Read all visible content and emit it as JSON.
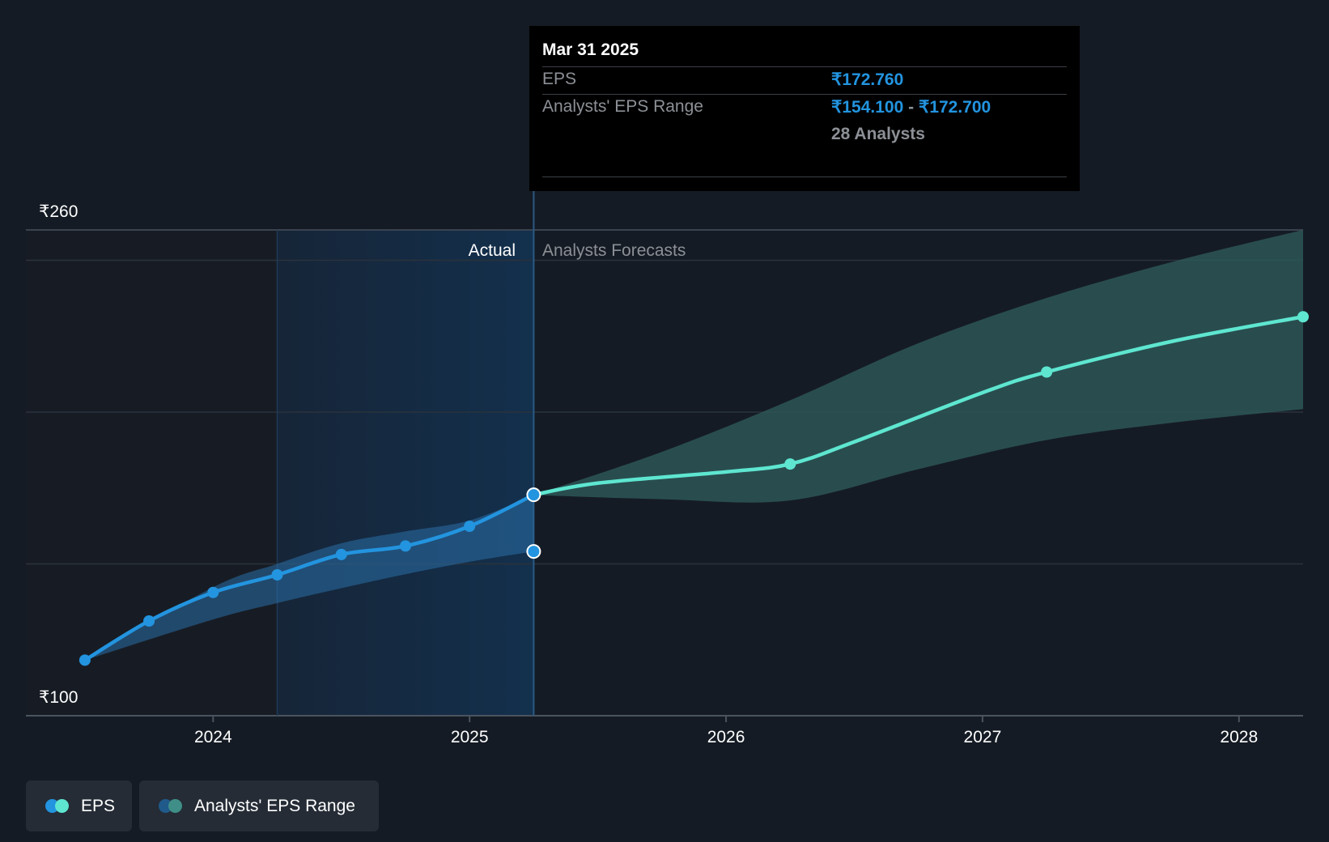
{
  "tooltip": {
    "date": "Mar 31 2025",
    "eps_label": "EPS",
    "eps_value": "₹172.760",
    "range_label": "Analysts' EPS Range",
    "range_low": "₹154.100",
    "range_sep": " - ",
    "range_high": "₹172.700",
    "analysts": "28 Analysts"
  },
  "sections": {
    "actual": "Actual",
    "forecast": "Analysts Forecasts"
  },
  "legend": {
    "eps": "EPS",
    "range": "Analysts' EPS Range"
  },
  "colors": {
    "eps_actual": "#2394df",
    "eps_forecast": "#5ee6d0",
    "range_actual": "#2a6fa8",
    "range_forecast": "#2e5a5a",
    "background": "#151b24"
  },
  "chart_data": {
    "type": "line",
    "y_tick_labels": [
      "₹260",
      "₹100"
    ],
    "ylim": [
      100,
      260
    ],
    "y_gridlines": [
      150,
      200,
      250
    ],
    "x_tick_labels": [
      "2024",
      "2025",
      "2026",
      "2027",
      "2028"
    ],
    "x_ticks": [
      2024.0,
      2025.0,
      2026.0,
      2027.0,
      2028.0
    ],
    "xlim": [
      2023.27,
      2028.25
    ],
    "actual_shaded_from": 2024.25,
    "divider_x": 2025.25,
    "series": [
      {
        "name": "EPS",
        "segment": "actual",
        "points": [
          [
            2023.5,
            118.3
          ],
          [
            2023.75,
            131.2
          ],
          [
            2024.0,
            140.6
          ],
          [
            2024.25,
            146.4
          ],
          [
            2024.5,
            153.1
          ],
          [
            2024.75,
            155.9
          ],
          [
            2025.0,
            162.4
          ],
          [
            2025.25,
            172.76
          ]
        ]
      },
      {
        "name": "EPS",
        "segment": "forecast",
        "points": [
          [
            2025.25,
            172.76
          ],
          [
            2025.5,
            176.6
          ],
          [
            2026.0,
            180.3
          ],
          [
            2026.25,
            182.9
          ],
          [
            2026.5,
            190.2
          ],
          [
            2027.0,
            206.4
          ],
          [
            2027.25,
            213.2
          ],
          [
            2027.75,
            223.5
          ],
          [
            2028.25,
            231.4
          ]
        ]
      },
      {
        "name": "Analysts' EPS Range",
        "segment": "actual",
        "upper": [
          [
            2023.5,
            118.3
          ],
          [
            2024.0,
            142.3
          ],
          [
            2024.25,
            150.0
          ],
          [
            2024.5,
            156.8
          ],
          [
            2024.75,
            160.7
          ],
          [
            2025.0,
            164.3
          ],
          [
            2025.25,
            172.7
          ]
        ],
        "lower": [
          [
            2023.5,
            118.3
          ],
          [
            2024.0,
            131.7
          ],
          [
            2024.25,
            137.1
          ],
          [
            2024.5,
            142.0
          ],
          [
            2024.75,
            146.6
          ],
          [
            2025.0,
            150.7
          ],
          [
            2025.25,
            154.1
          ]
        ]
      },
      {
        "name": "Analysts' EPS Range",
        "segment": "forecast",
        "upper": [
          [
            2025.25,
            172.7
          ],
          [
            2025.75,
            186.9
          ],
          [
            2026.25,
            203.9
          ],
          [
            2026.75,
            222.7
          ],
          [
            2027.25,
            237.6
          ],
          [
            2027.75,
            249.7
          ],
          [
            2028.25,
            260.0
          ]
        ],
        "lower": [
          [
            2025.25,
            172.7
          ],
          [
            2025.75,
            171.3
          ],
          [
            2026.25,
            170.9
          ],
          [
            2026.75,
            181.2
          ],
          [
            2027.25,
            190.8
          ],
          [
            2027.75,
            196.6
          ],
          [
            2028.25,
            201.0
          ]
        ]
      }
    ],
    "markers": [
      [
        2023.5,
        118.3
      ],
      [
        2023.75,
        131.2
      ],
      [
        2024.0,
        140.6
      ],
      [
        2024.25,
        146.4
      ],
      [
        2024.5,
        153.1
      ],
      [
        2024.75,
        155.9
      ],
      [
        2025.0,
        162.4
      ],
      [
        2026.25,
        182.9
      ],
      [
        2027.25,
        213.2
      ],
      [
        2028.25,
        231.4
      ]
    ],
    "highlight_markers": [
      [
        2025.25,
        172.76
      ],
      [
        2025.25,
        154.1
      ]
    ]
  }
}
